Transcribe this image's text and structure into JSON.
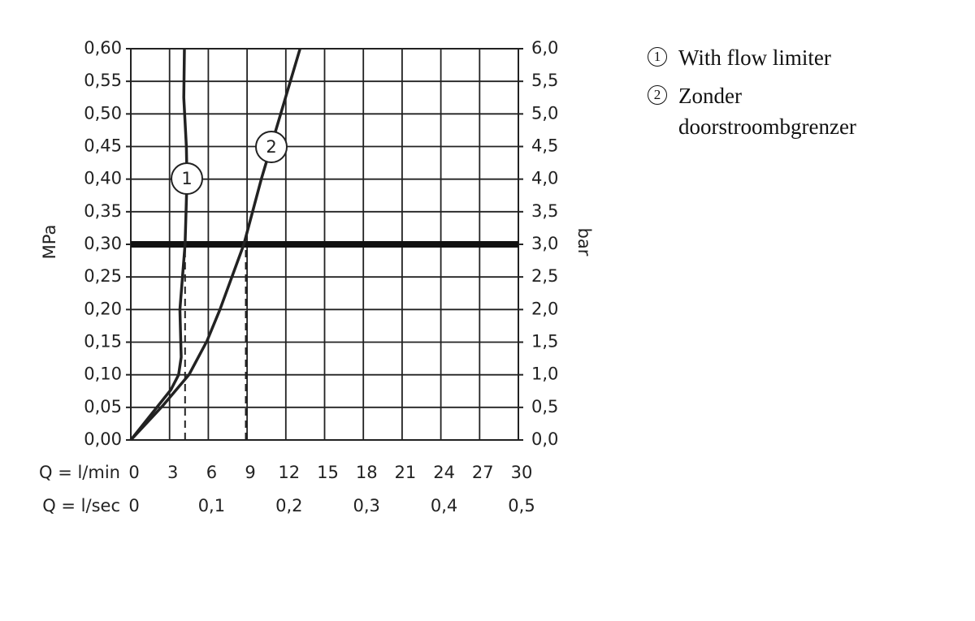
{
  "chart_data": {
    "type": "line",
    "y_label": "MPa",
    "y2_label": "bar",
    "x_label": "Q = l/min",
    "x2_label": "Q = l/sec",
    "xlim": [
      0,
      30
    ],
    "xticks": [
      0,
      3,
      6,
      9,
      12,
      15,
      18,
      21,
      24,
      27,
      30
    ],
    "x2lim": [
      0,
      0.5
    ],
    "x2ticks": [
      0,
      {
        "value": 0.1,
        "label": "0,1"
      },
      {
        "value": 0.2,
        "label": "0,2"
      },
      {
        "value": 0.3,
        "label": "0,3"
      },
      {
        "value": 0.4,
        "label": "0,4"
      },
      {
        "value": 0.5,
        "label": "0,5"
      }
    ],
    "ylim": [
      0,
      0.6
    ],
    "yticks": [
      {
        "value": 0,
        "label": "0,00"
      },
      {
        "value": 0.05,
        "label": "0,05"
      },
      {
        "value": 0.1,
        "label": "0,10"
      },
      {
        "value": 0.15,
        "label": "0,15"
      },
      {
        "value": 0.2,
        "label": "0,20"
      },
      {
        "value": 0.25,
        "label": "0,25"
      },
      {
        "value": 0.3,
        "label": "0,30"
      },
      {
        "value": 0.35,
        "label": "0,35"
      },
      {
        "value": 0.4,
        "label": "0,40"
      },
      {
        "value": 0.45,
        "label": "0,45"
      },
      {
        "value": 0.5,
        "label": "0,50"
      },
      {
        "value": 0.55,
        "label": "0,55"
      },
      {
        "value": 0.6,
        "label": "0,60"
      }
    ],
    "y2lim": [
      0,
      6
    ],
    "y2ticks": [
      {
        "value": 0,
        "label": "0,0"
      },
      {
        "value": 0.5,
        "label": "0,5"
      },
      {
        "value": 1,
        "label": "1,0"
      },
      {
        "value": 1.5,
        "label": "1,5"
      },
      {
        "value": 2,
        "label": "2,0"
      },
      {
        "value": 2.5,
        "label": "2,5"
      },
      {
        "value": 3,
        "label": "3,0"
      },
      {
        "value": 3.5,
        "label": "3,5"
      },
      {
        "value": 4,
        "label": "4,0"
      },
      {
        "value": 4.5,
        "label": "4,5"
      },
      {
        "value": 5,
        "label": "5,0"
      },
      {
        "value": 5.5,
        "label": "5,5"
      },
      {
        "value": 6,
        "label": "6,0"
      }
    ],
    "grid": true,
    "reference_y": 0.3,
    "reference_x": [
      4.2,
      8.9
    ],
    "series": [
      {
        "name": "With flow limiter",
        "label": "1",
        "color": "#222222",
        "x": [
          0,
          3.1,
          3.7,
          3.9,
          3.8,
          4.2,
          4.35,
          4.3,
          4.1,
          4.15
        ],
        "values": [
          0,
          0.077,
          0.1,
          0.127,
          0.2,
          0.3,
          0.4,
          0.45,
          0.525,
          0.6
        ]
      },
      {
        "name": "Zonder doorstroombgrenzer",
        "label": "2",
        "color": "#222222",
        "x": [
          0,
          2.45,
          4.5,
          5.9,
          6.9,
          8.75,
          10.1,
          11.6,
          13.1
        ],
        "values": [
          0,
          0.052,
          0.1,
          0.152,
          0.2,
          0.3,
          0.4,
          0.5,
          0.6
        ]
      }
    ]
  }
}
